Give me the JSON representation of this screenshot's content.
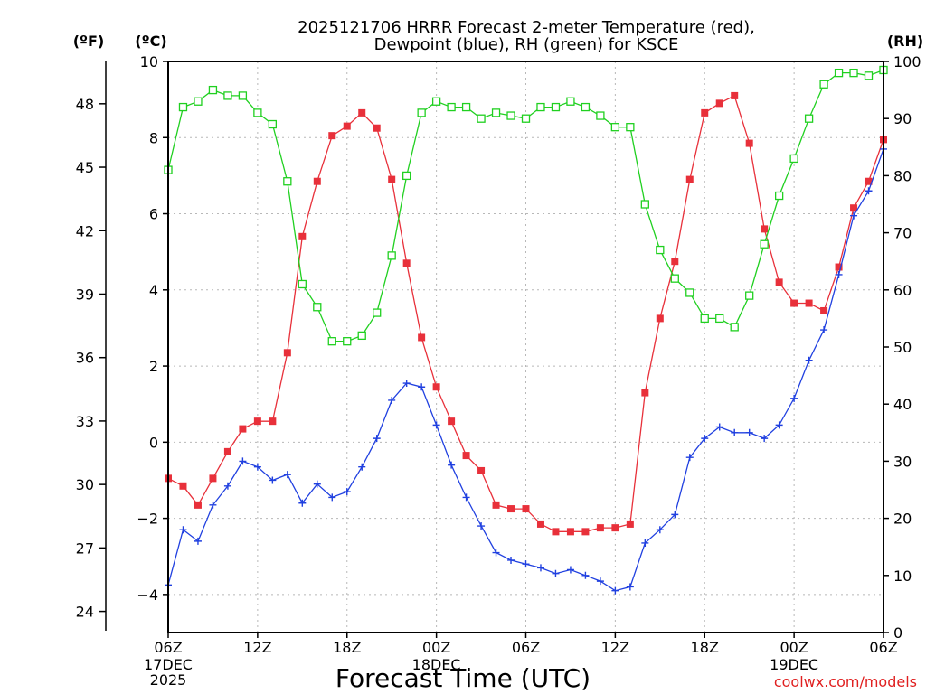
{
  "chart_data": {
    "type": "line",
    "title_line1": "2025121706 HRRR Forecast 2-meter Temperature (red),",
    "title_line2": "Dewpoint (blue), RH (green) for KSCE",
    "xlabel": "Forecast Time (UTC)",
    "credit": "coolwx.com/models",
    "unit_labels": {
      "fahrenheit": "(ºF)",
      "celsius": "(ºC)",
      "rh": "(RH)"
    },
    "x_range_hours": [
      0,
      48
    ],
    "x_ticks": [
      {
        "hour": 0,
        "label": "06Z"
      },
      {
        "hour": 6,
        "label": "12Z"
      },
      {
        "hour": 12,
        "label": "18Z"
      },
      {
        "hour": 18,
        "label": "00Z"
      },
      {
        "hour": 24,
        "label": "06Z"
      },
      {
        "hour": 30,
        "label": "12Z"
      },
      {
        "hour": 36,
        "label": "18Z"
      },
      {
        "hour": 42,
        "label": "00Z"
      },
      {
        "hour": 48,
        "label": "06Z"
      }
    ],
    "date_labels": [
      {
        "hour": 0,
        "text": "17DEC"
      },
      {
        "hour": 0,
        "text": "2025",
        "line": 2
      },
      {
        "hour": 18,
        "text": "18DEC"
      },
      {
        "hour": 42,
        "text": "19DEC"
      }
    ],
    "y_celsius": {
      "range": [
        -5,
        10
      ],
      "ticks": [
        -4,
        -2,
        0,
        2,
        4,
        6,
        8,
        10
      ]
    },
    "y_fahrenheit": {
      "ticks": [
        24,
        27,
        30,
        33,
        36,
        39,
        42,
        45,
        48
      ]
    },
    "y_rh": {
      "range": [
        0,
        100
      ],
      "ticks": [
        0,
        10,
        20,
        30,
        40,
        50,
        60,
        70,
        80,
        90,
        100
      ]
    },
    "grid": true,
    "series": [
      {
        "name": "Temperature",
        "color": "#e8303a",
        "marker": "filled-square",
        "axis": "celsius",
        "values": [
          -0.95,
          -1.15,
          -1.65,
          -0.95,
          -0.25,
          0.35,
          0.55,
          0.55,
          2.35,
          5.4,
          6.85,
          8.05,
          8.3,
          8.65,
          8.25,
          6.9,
          4.7,
          2.75,
          1.45,
          0.55,
          -0.35,
          -0.75,
          -1.65,
          -1.75,
          -1.75,
          -2.15,
          -2.35,
          -2.35,
          -2.35,
          -2.25,
          -2.25,
          -2.15,
          1.3,
          3.25,
          4.75,
          6.9,
          8.65,
          8.9,
          9.1,
          7.85,
          5.6,
          4.2,
          3.65,
          3.65,
          3.45,
          4.6,
          6.15,
          6.85,
          7.95
        ]
      },
      {
        "name": "Dewpoint",
        "color": "#2040e0",
        "marker": "plus",
        "axis": "celsius",
        "values": [
          -3.75,
          -2.3,
          -2.6,
          -1.65,
          -1.15,
          -0.5,
          -0.65,
          -1.0,
          -0.85,
          -1.6,
          -1.1,
          -1.45,
          -1.3,
          -0.65,
          0.1,
          1.1,
          1.55,
          1.45,
          0.45,
          -0.6,
          -1.45,
          -2.2,
          -2.9,
          -3.1,
          -3.2,
          -3.3,
          -3.45,
          -3.35,
          -3.5,
          -3.65,
          -3.9,
          -3.8,
          -2.65,
          -2.3,
          -1.9,
          -0.4,
          0.1,
          0.4,
          0.25,
          0.25,
          0.1,
          0.45,
          1.15,
          2.15,
          2.95,
          4.4,
          5.95,
          6.6,
          7.7
        ]
      },
      {
        "name": "RH",
        "color": "#20d020",
        "marker": "open-square",
        "axis": "rh",
        "values": [
          81,
          92,
          93,
          95,
          94,
          94,
          91,
          89,
          79,
          61,
          57,
          51,
          51,
          52,
          56,
          66,
          80,
          91,
          93,
          92,
          92,
          90,
          91,
          90.5,
          90,
          92,
          92,
          93,
          92,
          90.5,
          88.5,
          88.5,
          75,
          67,
          62,
          59.5,
          55,
          55,
          53.5,
          59,
          68,
          76.5,
          83,
          90,
          96,
          98,
          98,
          97.5,
          98.5
        ]
      }
    ]
  }
}
